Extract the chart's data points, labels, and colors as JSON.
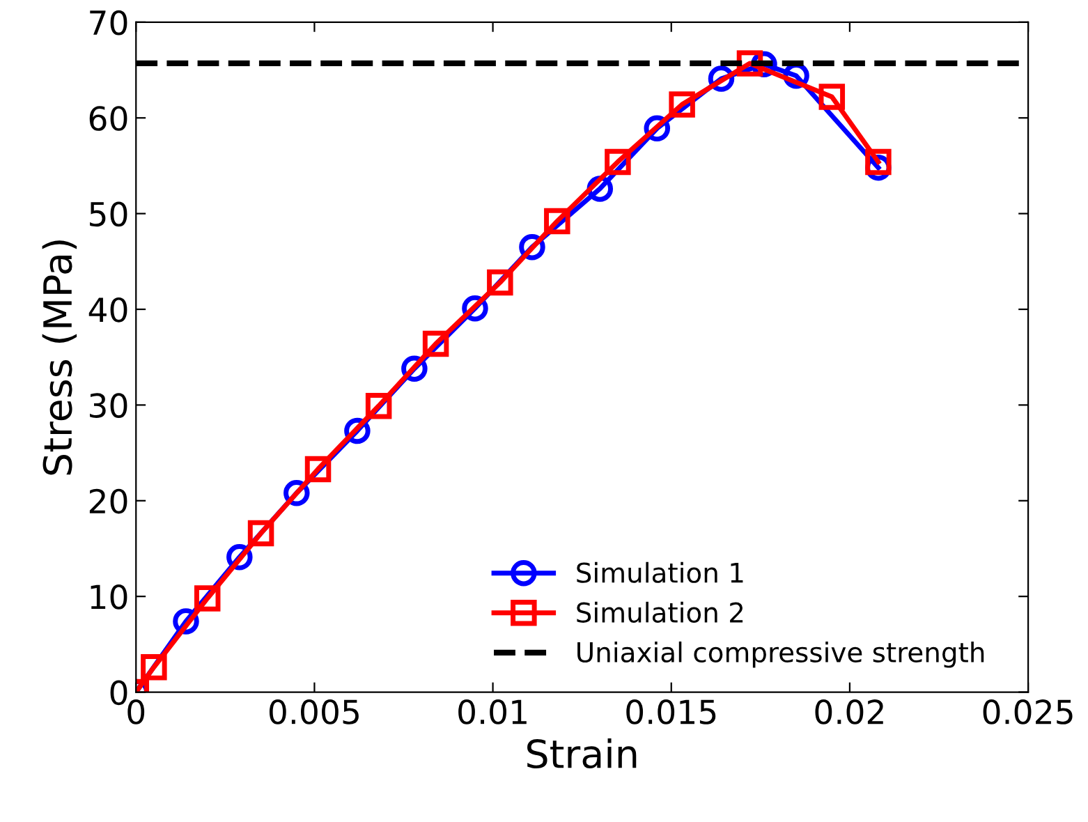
{
  "chart_data": {
    "type": "line",
    "xlabel": "Strain",
    "ylabel": "Stress (MPa)",
    "xlim": [
      0,
      0.025
    ],
    "ylim": [
      0,
      70
    ],
    "xticks": [
      0,
      0.005,
      0.01,
      0.015,
      0.02,
      0.025
    ],
    "yticks": [
      0,
      10,
      20,
      30,
      40,
      50,
      60,
      70
    ],
    "grid": false,
    "legend": "bottom right",
    "series": [
      {
        "name": "Simulation 1",
        "color": "#0000ff",
        "marker": "circle",
        "line_style": "solid",
        "x": [
          0,
          0.0014,
          0.0029,
          0.0045,
          0.0062,
          0.0078,
          0.0095,
          0.0111,
          0.013,
          0.0146,
          0.0164,
          0.0176,
          0.0185,
          0.0208
        ],
        "values": [
          0,
          7.4,
          14.1,
          20.8,
          27.3,
          33.8,
          40.1,
          46.5,
          52.6,
          58.9,
          64.1,
          65.6,
          64.4,
          54.8
        ]
      },
      {
        "name": "Simulation 2",
        "color": "#ff0000",
        "marker": "square",
        "line_style": "solid",
        "x": [
          0,
          0.0005,
          0.002,
          0.0035,
          0.0051,
          0.0068,
          0.0084,
          0.0102,
          0.0118,
          0.0135,
          0.0153,
          0.0172,
          0.0195,
          0.0208
        ],
        "values": [
          0,
          2.6,
          9.8,
          16.6,
          23.3,
          29.9,
          36.4,
          42.8,
          49.2,
          55.4,
          61.4,
          65.7,
          62.2,
          55.4
        ]
      }
    ],
    "ref_lines": [
      {
        "axis": "y",
        "value": 65.7,
        "label": "Uniaxial compressive strength",
        "color": "#000000",
        "line_style": "dashed"
      }
    ]
  }
}
